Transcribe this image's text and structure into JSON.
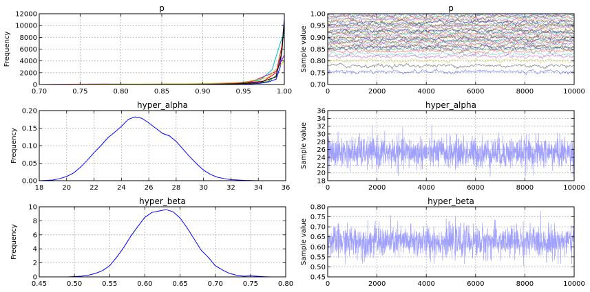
{
  "chart_data": [
    {
      "id": "p_hist",
      "type": "line",
      "title": "p",
      "xlabel": "",
      "ylabel": "Frequency",
      "xlim": [
        0.7,
        1.0
      ],
      "ylim": [
        0,
        12000
      ],
      "x_ticks": [
        "0.70",
        "0.75",
        "0.80",
        "0.85",
        "0.90",
        "0.95",
        "1.00"
      ],
      "y_ticks": [
        "0",
        "2000",
        "4000",
        "6000",
        "8000",
        "10000",
        "12000"
      ],
      "grid": true,
      "description_series": "many overlapping kernel density traces, concentrated near 1.00",
      "series": [
        {
          "color": "#0000ff",
          "x": [
            0.7,
            0.9,
            0.95,
            0.97,
            0.98,
            0.99,
            0.995,
            0.998,
            1.0
          ],
          "y": [
            0,
            10,
            60,
            200,
            400,
            900,
            3000,
            8000,
            11200
          ]
        },
        {
          "color": "#008000",
          "x": [
            0.7,
            0.88,
            0.93,
            0.96,
            0.98,
            0.99,
            0.996,
            1.0
          ],
          "y": [
            0,
            20,
            80,
            200,
            500,
            1500,
            5000,
            10500
          ]
        },
        {
          "color": "#ff0000",
          "x": [
            0.7,
            0.86,
            0.92,
            0.95,
            0.975,
            0.99,
            0.997,
            1.0
          ],
          "y": [
            0,
            30,
            90,
            250,
            600,
            2000,
            6500,
            9800
          ]
        },
        {
          "color": "#00bfbf",
          "x": [
            0.7,
            0.84,
            0.9,
            0.94,
            0.97,
            0.985,
            0.995,
            1.0
          ],
          "y": [
            0,
            40,
            110,
            300,
            700,
            2500,
            7000,
            9000
          ]
        },
        {
          "color": "#bf00bf",
          "x": [
            0.7,
            0.74,
            0.78,
            0.82,
            0.88,
            0.93,
            0.96,
            0.99,
            1.0
          ],
          "y": [
            0,
            60,
            80,
            60,
            100,
            200,
            500,
            2200,
            5000
          ]
        },
        {
          "color": "#bfbf00",
          "x": [
            0.7,
            0.8,
            0.85,
            0.9,
            0.95,
            0.98,
            1.0
          ],
          "y": [
            0,
            70,
            90,
            150,
            350,
            1200,
            4000
          ]
        },
        {
          "color": "#000000",
          "x": [
            0.7,
            0.9,
            0.94,
            0.97,
            0.99,
            0.997,
            1.0
          ],
          "y": [
            0,
            15,
            100,
            350,
            1300,
            5500,
            10800
          ]
        }
      ]
    },
    {
      "id": "p_trace",
      "type": "line",
      "title": "p",
      "xlabel": "",
      "ylabel": "Sample value",
      "xlim": [
        0,
        10000
      ],
      "ylim": [
        0.7,
        1.0
      ],
      "x_ticks": [
        "0",
        "2000",
        "4000",
        "6000",
        "8000",
        "10000"
      ],
      "y_ticks": [
        "0.70",
        "0.75",
        "0.80",
        "0.85",
        "0.90",
        "0.95",
        "1.00"
      ],
      "grid": true,
      "trace_levels": [
        0.995,
        0.99,
        0.985,
        0.98,
        0.975,
        0.97,
        0.965,
        0.96,
        0.955,
        0.95,
        0.945,
        0.94,
        0.935,
        0.93,
        0.925,
        0.92,
        0.915,
        0.91,
        0.905,
        0.9,
        0.895,
        0.89,
        0.885,
        0.88,
        0.875,
        0.87,
        0.865,
        0.86,
        0.855,
        0.85,
        0.84,
        0.83,
        0.82,
        0.8,
        0.78,
        0.755
      ],
      "trace_noise": 0.006,
      "colors": [
        "#0000ff",
        "#008000",
        "#ff0000",
        "#00bfbf",
        "#bf00bf",
        "#bfbf00",
        "#000000"
      ]
    },
    {
      "id": "alpha_hist",
      "type": "line",
      "title": "hyper_alpha",
      "xlabel": "",
      "ylabel": "Frequency",
      "xlim": [
        18,
        36
      ],
      "ylim": [
        0,
        0.2
      ],
      "x_ticks": [
        "18",
        "20",
        "22",
        "24",
        "26",
        "28",
        "30",
        "32",
        "34",
        "36"
      ],
      "y_ticks": [
        "0.00",
        "0.05",
        "0.10",
        "0.15",
        "0.20"
      ],
      "grid": true,
      "series": [
        {
          "color": "#0000ff",
          "x": [
            18,
            19,
            19.5,
            20,
            20.5,
            21,
            21.5,
            22,
            22.5,
            23,
            23.5,
            24,
            24.5,
            25,
            25.5,
            26,
            26.5,
            27,
            27.5,
            28,
            28.5,
            29,
            29.5,
            30,
            30.5,
            31,
            31.5,
            32,
            33,
            34,
            35,
            36
          ],
          "y": [
            0,
            0.002,
            0.006,
            0.012,
            0.022,
            0.038,
            0.058,
            0.08,
            0.1,
            0.122,
            0.138,
            0.155,
            0.175,
            0.182,
            0.178,
            0.165,
            0.15,
            0.135,
            0.128,
            0.112,
            0.09,
            0.068,
            0.048,
            0.03,
            0.018,
            0.01,
            0.006,
            0.003,
            0.001,
            0,
            0,
            0
          ]
        }
      ]
    },
    {
      "id": "alpha_trace",
      "type": "line",
      "title": "hyper_alpha",
      "xlabel": "",
      "ylabel": "Sample value",
      "xlim": [
        0,
        10000
      ],
      "ylim": [
        18,
        36
      ],
      "x_ticks": [
        "0",
        "2000",
        "4000",
        "6000",
        "8000",
        "10000"
      ],
      "y_ticks": [
        "18",
        "20",
        "22",
        "24",
        "26",
        "28",
        "30",
        "32",
        "34",
        "36"
      ],
      "grid": true,
      "trace_mean": 25.2,
      "trace_sd": 2.0,
      "trace_min": 18.2,
      "trace_max": 33.8,
      "color": "#a0a0ff"
    },
    {
      "id": "beta_hist",
      "type": "line",
      "title": "hyper_beta",
      "xlabel": "",
      "ylabel": "Frequency",
      "xlim": [
        0.45,
        0.8
      ],
      "ylim": [
        0,
        10
      ],
      "x_ticks": [
        "0.45",
        "0.50",
        "0.55",
        "0.60",
        "0.65",
        "0.70",
        "0.75",
        "0.80"
      ],
      "y_ticks": [
        "0",
        "2",
        "4",
        "6",
        "8",
        "10"
      ],
      "grid": true,
      "series": [
        {
          "color": "#0000ff",
          "x": [
            0.49,
            0.5,
            0.51,
            0.52,
            0.53,
            0.54,
            0.55,
            0.56,
            0.57,
            0.58,
            0.59,
            0.6,
            0.61,
            0.62,
            0.63,
            0.64,
            0.65,
            0.66,
            0.67,
            0.68,
            0.69,
            0.7,
            0.71,
            0.72,
            0.73,
            0.74,
            0.75,
            0.76,
            0.77,
            0.78
          ],
          "y": [
            0,
            0.05,
            0.1,
            0.25,
            0.5,
            0.9,
            1.6,
            2.8,
            4.2,
            5.8,
            7.2,
            8.5,
            9.2,
            9.4,
            9.6,
            9.3,
            8.4,
            7.0,
            5.4,
            3.8,
            2.8,
            1.6,
            1.0,
            0.5,
            0.25,
            0.1,
            0.15,
            0.08,
            0.03,
            0
          ]
        }
      ]
    },
    {
      "id": "beta_trace",
      "type": "line",
      "title": "hyper_beta",
      "xlabel": "",
      "ylabel": "Sample value",
      "xlim": [
        0,
        10000
      ],
      "ylim": [
        0.45,
        0.8
      ],
      "x_ticks": [
        "0",
        "2000",
        "4000",
        "6000",
        "8000",
        "10000"
      ],
      "y_ticks": [
        "0.45",
        "0.50",
        "0.55",
        "0.60",
        "0.65",
        "0.70",
        "0.75",
        "0.80"
      ],
      "grid": true,
      "trace_mean": 0.626,
      "trace_sd": 0.04,
      "trace_min": 0.49,
      "trace_max": 0.78,
      "color": "#a0a0ff"
    }
  ]
}
